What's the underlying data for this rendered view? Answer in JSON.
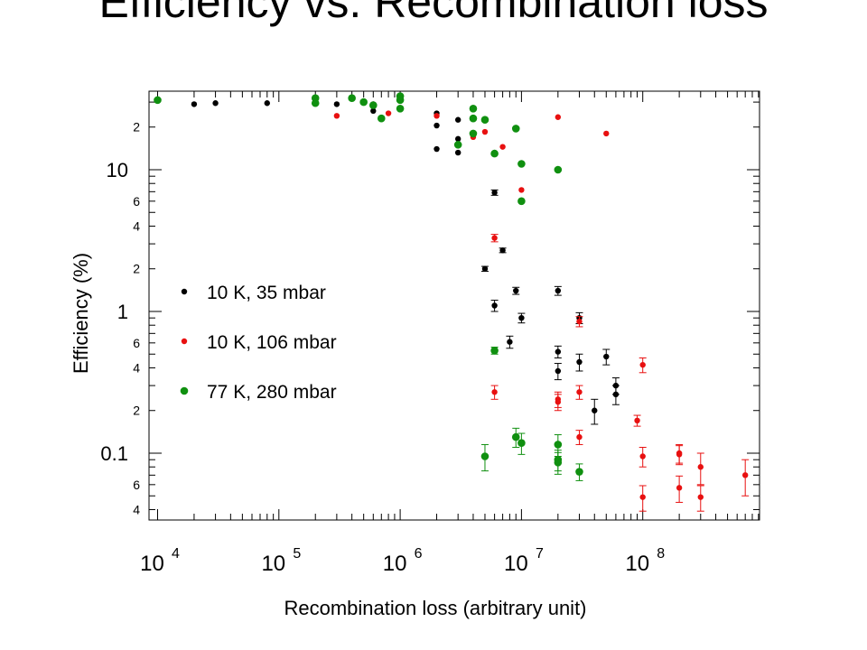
{
  "title": "Efficiency vs. Recombination loss",
  "chart_data": {
    "type": "scatter",
    "xlabel": "Recombination loss (arbitrary unit)",
    "ylabel": "Efficiency (%)",
    "x_scale": "log",
    "y_scale": "log",
    "xlim": [
      8000,
      900000000
    ],
    "ylim": [
      0.035,
      40
    ],
    "grid": false,
    "legend_position": "center-left",
    "x_ticks": [
      {
        "value": 10000,
        "base": "10",
        "exp": "4"
      },
      {
        "value": 100000,
        "base": "10",
        "exp": "5"
      },
      {
        "value": 1000000,
        "base": "10",
        "exp": "6"
      },
      {
        "value": 10000000,
        "base": "10",
        "exp": "7"
      },
      {
        "value": 100000000,
        "base": "10",
        "exp": "8"
      }
    ],
    "y_major_ticks": [
      {
        "value": 10,
        "label": "10"
      },
      {
        "value": 1,
        "label": "1"
      },
      {
        "value": 0.1,
        "label": "0.1"
      }
    ],
    "y_minor_labels": [
      {
        "value": 20,
        "label": "2"
      },
      {
        "value": 6,
        "label": "6"
      },
      {
        "value": 4,
        "label": "4"
      },
      {
        "value": 2,
        "label": "2"
      },
      {
        "value": 0.6,
        "label": "6"
      },
      {
        "value": 0.4,
        "label": "4"
      },
      {
        "value": 0.2,
        "label": "2"
      },
      {
        "value": 0.06,
        "label": "6"
      },
      {
        "value": 0.04,
        "label": "4"
      }
    ],
    "series": [
      {
        "name": "10 K, 35 mbar",
        "color": "#000000",
        "marker_size": "small",
        "points": [
          {
            "x": 20000,
            "y": 29
          },
          {
            "x": 30000,
            "y": 29.5
          },
          {
            "x": 80000,
            "y": 29.5
          },
          {
            "x": 300000,
            "y": 29
          },
          {
            "x": 600000,
            "y": 29
          },
          {
            "x": 600000,
            "y": 26
          },
          {
            "x": 2000000,
            "y": 25
          },
          {
            "x": 2000000,
            "y": 20.5
          },
          {
            "x": 2000000,
            "y": 14
          },
          {
            "x": 3000000,
            "y": 22.5
          },
          {
            "x": 3000000,
            "y": 16.5
          },
          {
            "x": 3000000,
            "y": 13.2
          },
          {
            "x": 6000000,
            "y": 6.9,
            "err": 0.3
          },
          {
            "x": 5000000,
            "y": 2.0,
            "err": 0.08
          },
          {
            "x": 7000000,
            "y": 2.7,
            "err": 0.1
          },
          {
            "x": 6000000,
            "y": 1.1,
            "err": 0.1
          },
          {
            "x": 9000000,
            "y": 1.4,
            "err": 0.08
          },
          {
            "x": 10000000,
            "y": 0.9,
            "err": 0.07
          },
          {
            "x": 20000000,
            "y": 1.4,
            "err": 0.1
          },
          {
            "x": 30000000,
            "y": 0.9,
            "err": 0.08
          },
          {
            "x": 8000000,
            "y": 0.61,
            "err": 0.06
          },
          {
            "x": 20000000,
            "y": 0.52,
            "err": 0.05
          },
          {
            "x": 20000000,
            "y": 0.38,
            "err": 0.05
          },
          {
            "x": 30000000,
            "y": 0.44,
            "err": 0.06
          },
          {
            "x": 50000000,
            "y": 0.48,
            "err": 0.06
          },
          {
            "x": 60000000,
            "y": 0.3,
            "err": 0.04
          },
          {
            "x": 60000000,
            "y": 0.26,
            "err": 0.04
          },
          {
            "x": 40000000,
            "y": 0.2,
            "err": 0.04
          }
        ]
      },
      {
        "name": "10 K, 106 mbar",
        "color": "#e81010",
        "marker_size": "small",
        "points": [
          {
            "x": 300000,
            "y": 24
          },
          {
            "x": 800000,
            "y": 25
          },
          {
            "x": 2000000,
            "y": 24
          },
          {
            "x": 4000000,
            "y": 17
          },
          {
            "x": 5000000,
            "y": 18.5
          },
          {
            "x": 7000000,
            "y": 14.5
          },
          {
            "x": 20000000,
            "y": 23.5
          },
          {
            "x": 50000000,
            "y": 18
          },
          {
            "x": 10000000,
            "y": 7.2
          },
          {
            "x": 6000000,
            "y": 3.3,
            "err": 0.2
          },
          {
            "x": 30000000,
            "y": 0.85,
            "err": 0.07
          },
          {
            "x": 100000000,
            "y": 0.42,
            "err": 0.05
          },
          {
            "x": 6000000,
            "y": 0.27,
            "err": 0.03
          },
          {
            "x": 20000000,
            "y": 0.24,
            "err": 0.03
          },
          {
            "x": 20000000,
            "y": 0.23,
            "err": 0.03
          },
          {
            "x": 30000000,
            "y": 0.27,
            "err": 0.03
          },
          {
            "x": 30000000,
            "y": 0.13,
            "err": 0.015
          },
          {
            "x": 90000000,
            "y": 0.17,
            "err": 0.015
          },
          {
            "x": 100000000,
            "y": 0.095,
            "err": 0.015
          },
          {
            "x": 200000000,
            "y": 0.1,
            "err": 0.015
          },
          {
            "x": 200000000,
            "y": 0.098,
            "err": 0.015
          },
          {
            "x": 300000000,
            "y": 0.08,
            "err": 0.02
          },
          {
            "x": 200000000,
            "y": 0.057,
            "err": 0.012
          },
          {
            "x": 100000000,
            "y": 0.049,
            "err": 0.01
          },
          {
            "x": 300000000,
            "y": 0.049,
            "err": 0.01
          },
          {
            "x": 700000000,
            "y": 0.07,
            "err": 0.02
          }
        ]
      },
      {
        "name": "77 K, 280 mbar",
        "color": "#109010",
        "marker_size": "large",
        "points": [
          {
            "x": 10000,
            "y": 31
          },
          {
            "x": 200000,
            "y": 32
          },
          {
            "x": 200000,
            "y": 29.5
          },
          {
            "x": 400000,
            "y": 32
          },
          {
            "x": 500000,
            "y": 30
          },
          {
            "x": 600000,
            "y": 28.5
          },
          {
            "x": 700000,
            "y": 23
          },
          {
            "x": 1000000,
            "y": 33
          },
          {
            "x": 1000000,
            "y": 31
          },
          {
            "x": 1000000,
            "y": 27
          },
          {
            "x": 4000000,
            "y": 27
          },
          {
            "x": 4000000,
            "y": 23
          },
          {
            "x": 4000000,
            "y": 18
          },
          {
            "x": 5000000,
            "y": 22.5
          },
          {
            "x": 3000000,
            "y": 15
          },
          {
            "x": 6000000,
            "y": 13
          },
          {
            "x": 9000000,
            "y": 19.5
          },
          {
            "x": 10000000,
            "y": 11
          },
          {
            "x": 20000000,
            "y": 10
          },
          {
            "x": 10000000,
            "y": 6
          },
          {
            "x": 6000000,
            "y": 0.53,
            "err": 0.03
          },
          {
            "x": 9000000,
            "y": 0.13,
            "err": 0.02
          },
          {
            "x": 10000000,
            "y": 0.118,
            "err": 0.02
          },
          {
            "x": 5000000,
            "y": 0.095,
            "err": 0.02
          },
          {
            "x": 20000000,
            "y": 0.115,
            "err": 0.02
          },
          {
            "x": 20000000,
            "y": 0.09,
            "err": 0.015
          },
          {
            "x": 20000000,
            "y": 0.086,
            "err": 0.015
          },
          {
            "x": 30000000,
            "y": 0.074,
            "err": 0.01
          }
        ]
      }
    ]
  }
}
